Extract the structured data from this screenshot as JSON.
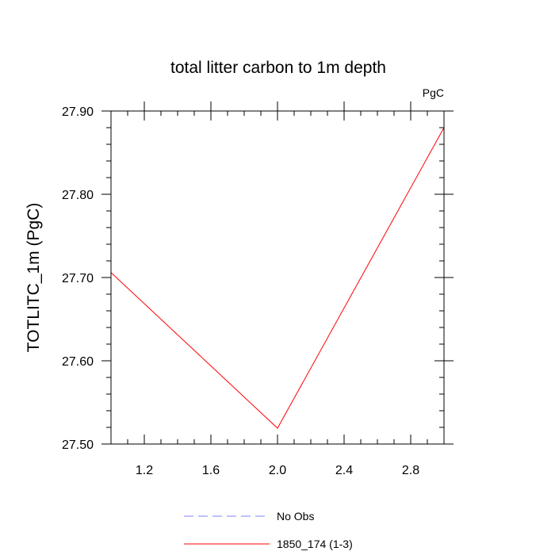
{
  "chart_data": {
    "type": "line",
    "title": "total litter carbon to 1m depth",
    "units_label": "PgC",
    "ylabel": "TOTLITC_1m  (PgC)",
    "xlabel": "",
    "xlim": [
      1.0,
      3.0
    ],
    "ylim": [
      27.5,
      27.9
    ],
    "x_ticks": [
      1.2,
      1.6,
      2.0,
      2.4,
      2.8
    ],
    "x_tick_labels": [
      "1.2",
      "1.6",
      "2.0",
      "2.4",
      "2.8"
    ],
    "y_ticks": [
      27.5,
      27.6,
      27.7,
      27.8,
      27.9
    ],
    "y_tick_labels": [
      "27.50",
      "27.60",
      "27.70",
      "27.80",
      "27.90"
    ],
    "x_minor_step": 0.1,
    "y_minor_step": 0.02,
    "grid": false,
    "legend_position": "bottom",
    "series": [
      {
        "name": "No Obs",
        "x": [],
        "y": [],
        "color": "#8080ff",
        "dash": "dashed"
      },
      {
        "name": "1850_174 (1-3)",
        "x": [
          1,
          2,
          3
        ],
        "y": [
          27.706,
          27.519,
          27.88
        ],
        "color": "#ff0000",
        "dash": "solid"
      }
    ]
  }
}
